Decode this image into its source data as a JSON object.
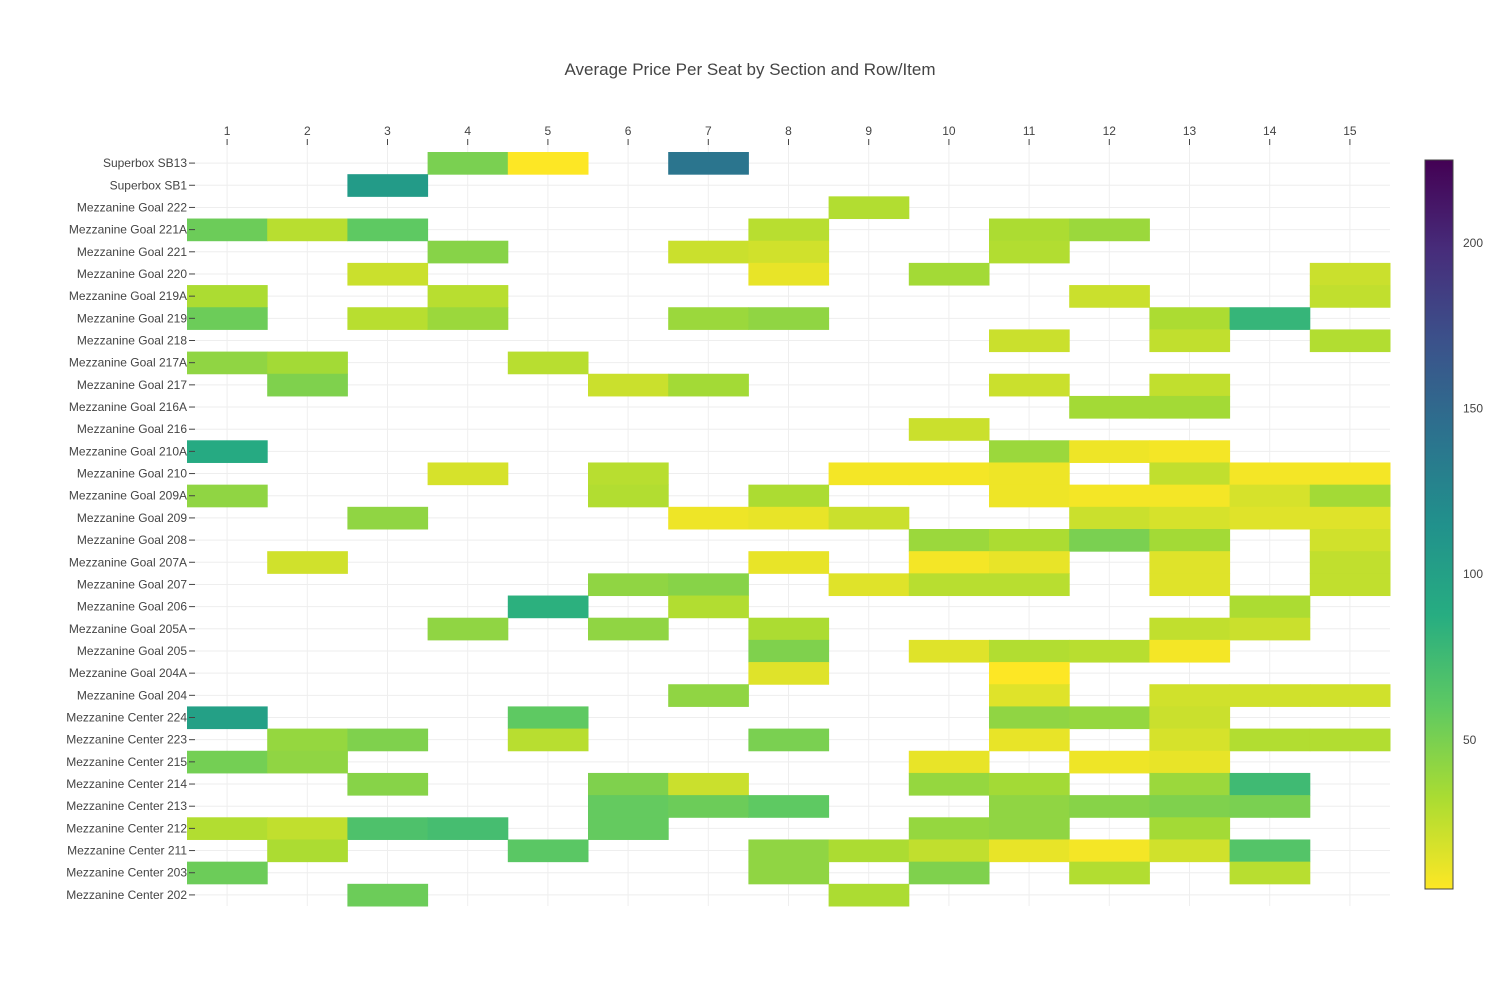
{
  "chart_data": {
    "type": "heatmap",
    "title": "Average Price Per Seat by Section and Row/Item",
    "xlabel": "",
    "ylabel": "",
    "x_categories": [
      "1",
      "2",
      "3",
      "4",
      "5",
      "6",
      "7",
      "8",
      "9",
      "10",
      "11",
      "12",
      "13",
      "14",
      "15"
    ],
    "y_categories": [
      "Superbox SB13",
      "Superbox SB1",
      "Mezzanine Goal 222",
      "Mezzanine Goal 221A",
      "Mezzanine Goal 221",
      "Mezzanine Goal 220",
      "Mezzanine Goal 219A",
      "Mezzanine Goal 219",
      "Mezzanine Goal 218",
      "Mezzanine Goal 217A",
      "Mezzanine Goal 217",
      "Mezzanine Goal 216A",
      "Mezzanine Goal 216",
      "Mezzanine Goal 210A",
      "Mezzanine Goal 210",
      "Mezzanine Goal 209A",
      "Mezzanine Goal 209",
      "Mezzanine Goal 208",
      "Mezzanine Goal 207A",
      "Mezzanine Goal 207",
      "Mezzanine Goal 206",
      "Mezzanine Goal 205A",
      "Mezzanine Goal 205",
      "Mezzanine Goal 204A",
      "Mezzanine Goal 204",
      "Mezzanine Center 224",
      "Mezzanine Center 223",
      "Mezzanine Center 215",
      "Mezzanine Center 214",
      "Mezzanine Center 213",
      "Mezzanine Center 212",
      "Mezzanine Center 211",
      "Mezzanine Center 203",
      "Mezzanine Center 202"
    ],
    "z": [
      [
        null,
        null,
        null,
        50,
        5,
        null,
        140,
        null,
        null,
        null,
        null,
        null,
        null,
        null,
        null
      ],
      [
        null,
        null,
        105,
        null,
        null,
        null,
        null,
        null,
        null,
        null,
        null,
        null,
        null,
        null,
        null
      ],
      [
        null,
        null,
        null,
        null,
        null,
        null,
        null,
        null,
        30,
        null,
        null,
        null,
        null,
        null,
        null
      ],
      [
        55,
        28,
        60,
        null,
        null,
        null,
        null,
        28,
        null,
        null,
        32,
        38,
        null,
        null,
        null
      ],
      [
        null,
        null,
        null,
        45,
        null,
        null,
        22,
        20,
        null,
        null,
        30,
        null,
        null,
        null,
        null
      ],
      [
        null,
        null,
        22,
        null,
        null,
        null,
        null,
        12,
        null,
        35,
        null,
        null,
        null,
        null,
        22
      ],
      [
        32,
        null,
        null,
        28,
        null,
        null,
        null,
        null,
        null,
        null,
        null,
        22,
        null,
        null,
        25
      ],
      [
        55,
        null,
        28,
        38,
        null,
        null,
        38,
        42,
        null,
        null,
        null,
        null,
        32,
        80,
        null
      ],
      [
        null,
        null,
        null,
        null,
        null,
        null,
        null,
        null,
        null,
        null,
        22,
        null,
        25,
        null,
        30
      ],
      [
        42,
        35,
        null,
        null,
        28,
        null,
        null,
        null,
        null,
        null,
        null,
        null,
        null,
        null,
        null
      ],
      [
        null,
        48,
        null,
        null,
        null,
        22,
        35,
        null,
        null,
        null,
        22,
        null,
        25,
        null,
        null
      ],
      [
        null,
        null,
        null,
        null,
        null,
        null,
        null,
        null,
        null,
        null,
        null,
        35,
        35,
        null,
        null
      ],
      [
        null,
        null,
        null,
        null,
        null,
        null,
        null,
        null,
        null,
        22,
        null,
        null,
        null,
        null,
        null
      ],
      [
        90,
        null,
        null,
        null,
        null,
        null,
        null,
        null,
        null,
        null,
        38,
        10,
        8,
        null,
        null
      ],
      [
        null,
        null,
        null,
        18,
        null,
        28,
        null,
        null,
        8,
        8,
        10,
        null,
        25,
        8,
        8
      ],
      [
        42,
        null,
        null,
        null,
        null,
        30,
        null,
        32,
        null,
        null,
        10,
        8,
        8,
        18,
        35
      ],
      [
        null,
        null,
        42,
        null,
        null,
        null,
        10,
        12,
        22,
        null,
        null,
        22,
        18,
        15,
        15
      ],
      [
        null,
        null,
        null,
        null,
        null,
        null,
        null,
        null,
        null,
        38,
        32,
        50,
        35,
        null,
        20
      ],
      [
        null,
        20,
        null,
        null,
        null,
        null,
        null,
        12,
        null,
        8,
        12,
        null,
        15,
        null,
        25
      ],
      [
        null,
        null,
        null,
        null,
        null,
        42,
        45,
        null,
        15,
        28,
        28,
        null,
        15,
        null,
        25
      ],
      [
        null,
        null,
        null,
        null,
        85,
        null,
        30,
        null,
        null,
        null,
        null,
        null,
        null,
        32,
        null
      ],
      [
        null,
        null,
        null,
        42,
        null,
        42,
        null,
        32,
        null,
        null,
        null,
        null,
        25,
        22,
        null
      ],
      [
        null,
        null,
        null,
        null,
        null,
        null,
        null,
        48,
        null,
        15,
        30,
        28,
        8,
        null,
        null
      ],
      [
        null,
        null,
        null,
        null,
        null,
        null,
        null,
        15,
        null,
        null,
        5,
        null,
        null,
        null,
        null
      ],
      [
        null,
        null,
        null,
        null,
        null,
        null,
        42,
        null,
        null,
        null,
        15,
        null,
        20,
        20,
        20
      ],
      [
        100,
        null,
        null,
        null,
        60,
        null,
        null,
        null,
        null,
        null,
        42,
        40,
        22,
        null,
        null
      ],
      [
        null,
        40,
        48,
        null,
        28,
        null,
        null,
        50,
        null,
        null,
        12,
        null,
        18,
        30,
        30
      ],
      [
        52,
        42,
        null,
        null,
        null,
        null,
        null,
        null,
        null,
        12,
        null,
        10,
        12,
        null,
        null
      ],
      [
        null,
        null,
        45,
        null,
        null,
        48,
        22,
        null,
        null,
        40,
        35,
        null,
        38,
        75,
        null
      ],
      [
        null,
        null,
        null,
        null,
        null,
        58,
        55,
        60,
        null,
        null,
        42,
        45,
        48,
        50,
        null
      ],
      [
        30,
        25,
        68,
        72,
        null,
        58,
        null,
        null,
        null,
        40,
        42,
        null,
        35,
        null,
        null
      ],
      [
        null,
        32,
        null,
        null,
        62,
        null,
        null,
        42,
        32,
        25,
        12,
        8,
        20,
        65,
        null
      ],
      [
        55,
        null,
        null,
        null,
        null,
        null,
        null,
        42,
        null,
        48,
        null,
        30,
        null,
        28,
        null
      ],
      [
        null,
        null,
        55,
        null,
        null,
        null,
        null,
        null,
        32,
        null,
        null,
        null,
        null,
        null,
        null
      ]
    ],
    "colorscale": "Viridis (reversed: low = yellow, high = purple)",
    "colorbar": {
      "range": [
        5,
        225
      ],
      "tick_labels": [
        "50",
        "100",
        "150",
        "200"
      ],
      "tick_values": [
        50,
        100,
        150,
        200
      ]
    },
    "x_axis_position": "top",
    "grid": true,
    "legend": "colorbar-right"
  }
}
